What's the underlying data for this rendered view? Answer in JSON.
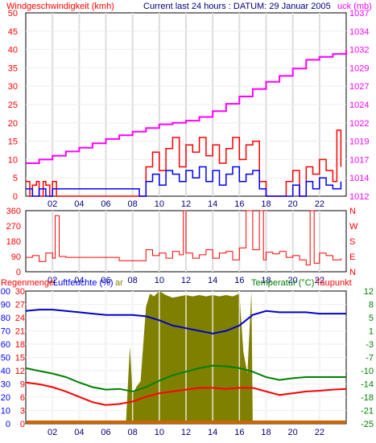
{
  "colors": {
    "wind_title": "#ff0000",
    "header": "#000080",
    "pressure": "#ff00ff",
    "gust": "#ff0000",
    "wind": "#0000ff",
    "direction": "#ff0000",
    "rain_label": "#ff0000",
    "humidity_label": "#0000ff",
    "temp_label": "#008000",
    "dew_label": "#ff0000",
    "humidity_line": "#0000cc",
    "temperature_line": "#008000",
    "dewpoint_line": "#ff0000",
    "solar_fill": "#808000",
    "rain_bar": "#cc6600",
    "grid": "#dddddd",
    "frame": "#000000"
  },
  "header": {
    "wind_title": "Windgeschwindigkeit (kmh)",
    "info": "Current last 24 hours : DATUM: 29 Januar 2005",
    "pressure_title": "uck (mb)"
  },
  "bottom_header": {
    "rain": "Regenmenge",
    "humidity": "Luftfeuchte (%)",
    "solar_suffix": "ar",
    "temperature": "Temperatur (°C)",
    "dewpoint": "Taupunkt"
  },
  "chart_data": [
    {
      "type": "line",
      "panel": "wind-pressure",
      "x_ticks": [
        "02",
        "04",
        "06",
        "08",
        "10",
        "12",
        "14",
        "16",
        "18",
        "20",
        "22"
      ],
      "y_left_ticks": [
        "0",
        "5",
        "10",
        "15",
        "20",
        "25",
        "30",
        "35",
        "40",
        "45",
        "50"
      ],
      "y_left_range": [
        0,
        50
      ],
      "y_right_ticks": [
        "1012",
        "1014",
        "1017",
        "1019",
        "1022",
        "1024",
        "1027",
        "1029",
        "1032",
        "1034",
        "1037"
      ],
      "y_right_range": [
        1012,
        1037
      ],
      "pressure_mb": {
        "x": [
          0,
          1,
          2,
          3,
          4,
          5,
          6,
          7,
          8,
          9,
          10,
          11,
          12,
          13,
          14,
          15,
          16,
          17,
          18,
          19,
          20,
          21,
          22,
          23,
          24
        ],
        "y": [
          1016.5,
          1017.0,
          1017.5,
          1018.1,
          1018.6,
          1019.2,
          1019.8,
          1020.3,
          1020.8,
          1021.3,
          1021.8,
          1022.0,
          1022.3,
          1022.8,
          1023.6,
          1024.6,
          1025.6,
          1026.6,
          1027.6,
          1028.4,
          1029.4,
          1030.6,
          1031.0,
          1031.4,
          1032.0
        ]
      },
      "wind_gust_kmh": {
        "x": [
          0.0,
          0.3,
          0.5,
          0.8,
          1.0,
          1.3,
          1.5,
          1.8,
          2.0,
          2.3,
          8.5,
          9.0,
          9.5,
          10.0,
          10.5,
          11.0,
          11.5,
          12.0,
          12.5,
          13.0,
          13.5,
          14.0,
          14.5,
          15.0,
          15.5,
          16.0,
          16.5,
          17.0,
          17.5,
          18.0,
          18.5,
          19.0,
          19.5,
          20.0,
          20.5,
          21.0,
          21.5,
          22.0,
          22.5,
          23.0,
          23.3,
          23.6
        ],
        "y": [
          4,
          0,
          3,
          4,
          0,
          4,
          3,
          0,
          4,
          0,
          0,
          8,
          12,
          7,
          13,
          16,
          8,
          14,
          12,
          16,
          11,
          14,
          9,
          13,
          16,
          10,
          14,
          15,
          4,
          0,
          0,
          0,
          4,
          7,
          0,
          8,
          6,
          10,
          7,
          4,
          18,
          8
        ]
      },
      "wind_avg_kmh": {
        "x": [
          0.0,
          0.5,
          1.0,
          1.5,
          2.0,
          8.5,
          9.0,
          9.5,
          10.0,
          10.5,
          11.0,
          11.5,
          12.0,
          12.5,
          13.0,
          13.5,
          14.0,
          14.5,
          15.0,
          15.5,
          16.0,
          16.5,
          17.0,
          17.5,
          18.0,
          19.5,
          20.0,
          20.5,
          21.0,
          21.5,
          22.0,
          22.5,
          23.0,
          23.6
        ],
        "y": [
          2,
          0,
          2,
          0,
          2,
          0,
          4,
          6,
          3,
          7,
          6,
          4,
          7,
          5,
          8,
          4,
          7,
          3,
          6,
          8,
          4,
          6,
          7,
          2,
          0,
          0,
          3,
          0,
          4,
          2,
          5,
          3,
          2,
          4
        ]
      }
    },
    {
      "type": "line",
      "panel": "wind-direction",
      "x_ticks": [
        "02",
        "04",
        "06",
        "08",
        "10",
        "12",
        "14",
        "16",
        "18",
        "20",
        "22"
      ],
      "y_left_ticks": [
        "0",
        "90",
        "180",
        "270",
        "360"
      ],
      "y_left_range": [
        0,
        360
      ],
      "y_right_ticks": [
        "N",
        "E",
        "S",
        "W",
        "N"
      ],
      "direction_deg": {
        "x": [
          0.0,
          0.5,
          1.0,
          1.5,
          2.0,
          2.2,
          2.5,
          3.0,
          4.0,
          5.0,
          6.0,
          7.0,
          8.0,
          8.5,
          9.0,
          9.5,
          10.0,
          10.5,
          11.0,
          11.5,
          11.8,
          12.0,
          12.5,
          13.0,
          13.5,
          14.0,
          14.5,
          15.0,
          15.5,
          16.0,
          16.5,
          17.0,
          17.5,
          17.8,
          18.0,
          18.5,
          19.0,
          19.5,
          20.0,
          20.5,
          21.0,
          21.3,
          21.6,
          22.0,
          22.5,
          23.0,
          23.6
        ],
        "y": [
          85,
          95,
          60,
          110,
          80,
          330,
          90,
          85,
          85,
          85,
          85,
          65,
          65,
          65,
          130,
          95,
          110,
          80,
          120,
          100,
          360,
          110,
          80,
          100,
          130,
          80,
          110,
          120,
          70,
          140,
          360,
          130,
          360,
          70,
          115,
          105,
          120,
          85,
          95,
          70,
          40,
          360,
          50,
          110,
          95,
          70,
          80
        ]
      }
    },
    {
      "type": "line",
      "panel": "climate",
      "x_ticks": [
        "02",
        "04",
        "06",
        "08",
        "10",
        "12",
        "14",
        "16",
        "18",
        "20",
        "22"
      ],
      "y_left_ticks": [
        "0",
        "10",
        "20",
        "30",
        "40",
        "50",
        "60",
        "70",
        "80",
        "90",
        "100"
      ],
      "y_left_range": [
        0,
        100
      ],
      "y_mid_ticks": [
        "0",
        "3",
        "6",
        "9",
        "12",
        "15",
        "18",
        "21",
        "24",
        "27",
        "30"
      ],
      "y_right_ticks": [
        "-25",
        "-21",
        "-18",
        "-14",
        "-10",
        "-7",
        "-3",
        "1",
        "5",
        "8",
        "12"
      ],
      "y_right_range": [
        -25,
        12
      ],
      "humidity_pct": {
        "x": [
          0,
          1,
          2,
          3,
          4,
          5,
          6,
          7,
          8,
          9,
          10,
          11,
          12,
          13,
          14,
          15,
          16,
          17,
          18,
          19,
          20,
          21,
          22,
          23,
          24
        ],
        "y": [
          85,
          86,
          86,
          85,
          84,
          83,
          82,
          82,
          82,
          81,
          78,
          74,
          72,
          70,
          68,
          70,
          74,
          82,
          85,
          84,
          84,
          84,
          83,
          83,
          83
        ]
      },
      "temperature_c": {
        "x": [
          0,
          1,
          2,
          3,
          4,
          5,
          6,
          7,
          8,
          9,
          10,
          11,
          12,
          13,
          14,
          15,
          16,
          17,
          18,
          19,
          20,
          21,
          22,
          23,
          24
        ],
        "y": [
          -9.5,
          -10.3,
          -11.0,
          -12.0,
          -13.5,
          -14.8,
          -15.5,
          -15.3,
          -16.0,
          -14.8,
          -13.0,
          -11.5,
          -10.5,
          -9.5,
          -8.8,
          -9.0,
          -9.5,
          -10.5,
          -12.0,
          -12.8,
          -12.3,
          -12.0,
          -12.0,
          -12.0,
          -12.0
        ]
      },
      "dewpoint_c": {
        "x": [
          0,
          1,
          2,
          3,
          4,
          5,
          6,
          7,
          8,
          9,
          10,
          11,
          12,
          13,
          14,
          15,
          16,
          17,
          18,
          19,
          20,
          21,
          22,
          23,
          24
        ],
        "y": [
          -13.5,
          -14.0,
          -14.8,
          -16.0,
          -17.5,
          -19.0,
          -19.8,
          -19.5,
          -18.8,
          -17.5,
          -16.5,
          -16.0,
          -15.5,
          -15.0,
          -15.0,
          -15.3,
          -15.0,
          -15.0,
          -16.0,
          -17.0,
          -16.5,
          -16.0,
          -15.8,
          -15.5,
          -15.3
        ]
      },
      "solar_scale_0_100": {
        "x": [
          7.5,
          7.8,
          8.0,
          8.3,
          8.6,
          9.0,
          9.3,
          9.6,
          10.0,
          10.5,
          11.0,
          11.5,
          12.0,
          12.5,
          13.0,
          13.5,
          14.0,
          14.5,
          15.0,
          15.5,
          16.0,
          16.3,
          16.6,
          16.9,
          17.0
        ],
        "y": [
          0,
          58,
          22,
          28,
          32,
          88,
          98,
          96,
          100,
          97,
          95,
          96,
          97,
          96,
          97,
          96,
          97,
          96,
          97,
          96,
          98,
          54,
          38,
          100,
          0
        ]
      },
      "rain_counts": {
        "x": [
          0,
          24
        ],
        "y": [
          1,
          1
        ]
      }
    }
  ]
}
